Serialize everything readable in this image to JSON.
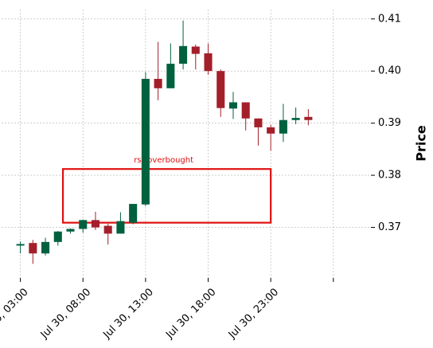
{
  "chart_data": {
    "type": "candlestick",
    "ylabel": "Price",
    "ylim": [
      0.3603,
      0.4118
    ],
    "yticks": [
      0.37,
      0.38,
      0.39,
      0.4,
      0.41
    ],
    "ytick_labels": [
      "0.37",
      "0.38",
      "0.39",
      "0.40",
      "0.41"
    ],
    "xlim": [
      -1.5,
      28.0
    ],
    "xticks": [
      0,
      5,
      10,
      15,
      20,
      25
    ],
    "xtick_labels": [
      "Jul 30, 03:00",
      "Jul 30, 08:00",
      "Jul 30, 13:00",
      "Jul 30, 18:00",
      "Jul 30, 23:00",
      ""
    ],
    "grid": true,
    "up_color": "#00613f",
    "down_color": "#a31f2a",
    "annotation_color": "#e01010",
    "candles": [
      {
        "time": "Jul 30, 03:00",
        "open": 0.3665,
        "high": 0.3673,
        "low": 0.365,
        "close": 0.3668
      },
      {
        "time": "Jul 30, 04:00",
        "open": 0.367,
        "high": 0.3676,
        "low": 0.363,
        "close": 0.365
      },
      {
        "time": "Jul 30, 05:00",
        "open": 0.365,
        "high": 0.368,
        "low": 0.3646,
        "close": 0.3672
      },
      {
        "time": "Jul 30, 06:00",
        "open": 0.3672,
        "high": 0.3693,
        "low": 0.3665,
        "close": 0.3692
      },
      {
        "time": "Jul 30, 07:00",
        "open": 0.3692,
        "high": 0.3698,
        "low": 0.3688,
        "close": 0.3697
      },
      {
        "time": "Jul 30, 08:00",
        "open": 0.3697,
        "high": 0.3715,
        "low": 0.369,
        "close": 0.3714
      },
      {
        "time": "Jul 30, 09:00",
        "open": 0.3714,
        "high": 0.373,
        "low": 0.3695,
        "close": 0.37
      },
      {
        "time": "Jul 30, 10:00",
        "open": 0.3703,
        "high": 0.3707,
        "low": 0.3667,
        "close": 0.3688
      },
      {
        "time": "Jul 30, 11:00",
        "open": 0.3688,
        "high": 0.3729,
        "low": 0.3688,
        "close": 0.3712
      },
      {
        "time": "Jul 30, 12:00",
        "open": 0.3709,
        "high": 0.3745,
        "low": 0.3706,
        "close": 0.3745
      },
      {
        "time": "Jul 30, 13:00",
        "open": 0.3744,
        "high": 0.3998,
        "low": 0.3741,
        "close": 0.3985
      },
      {
        "time": "Jul 30, 14:00",
        "open": 0.3985,
        "high": 0.4056,
        "low": 0.3944,
        "close": 0.3967
      },
      {
        "time": "Jul 30, 15:00",
        "open": 0.3967,
        "high": 0.4053,
        "low": 0.3967,
        "close": 0.4014
      },
      {
        "time": "Jul 30, 16:00",
        "open": 0.4014,
        "high": 0.4097,
        "low": 0.4003,
        "close": 0.4048
      },
      {
        "time": "Jul 30, 17:00",
        "open": 0.4047,
        "high": 0.4051,
        "low": 0.4003,
        "close": 0.4033
      },
      {
        "time": "Jul 30, 18:00",
        "open": 0.4034,
        "high": 0.4053,
        "low": 0.3993,
        "close": 0.4
      },
      {
        "time": "Jul 30, 19:00",
        "open": 0.4,
        "high": 0.4003,
        "low": 0.3912,
        "close": 0.3929
      },
      {
        "time": "Jul 30, 20:00",
        "open": 0.3928,
        "high": 0.396,
        "low": 0.3908,
        "close": 0.394
      },
      {
        "time": "Jul 30, 21:00",
        "open": 0.394,
        "high": 0.394,
        "low": 0.3886,
        "close": 0.3909
      },
      {
        "time": "Jul 30, 22:00",
        "open": 0.3909,
        "high": 0.3909,
        "low": 0.3857,
        "close": 0.3892
      },
      {
        "time": "Jul 30, 23:00",
        "open": 0.3892,
        "high": 0.3897,
        "low": 0.3847,
        "close": 0.388
      },
      {
        "time": "Jul 31, 00:00",
        "open": 0.388,
        "high": 0.3937,
        "low": 0.3864,
        "close": 0.3906
      },
      {
        "time": "Jul 31, 01:00",
        "open": 0.3906,
        "high": 0.393,
        "low": 0.3898,
        "close": 0.391
      },
      {
        "time": "Jul 31, 02:00",
        "open": 0.3912,
        "high": 0.3927,
        "low": 0.3896,
        "close": 0.3906
      }
    ],
    "annotations": [
      {
        "label": "rsi_overbought",
        "x_start": 3.4,
        "x_end": 20.0,
        "y_low": 0.3709,
        "y_high": 0.3812
      }
    ]
  }
}
